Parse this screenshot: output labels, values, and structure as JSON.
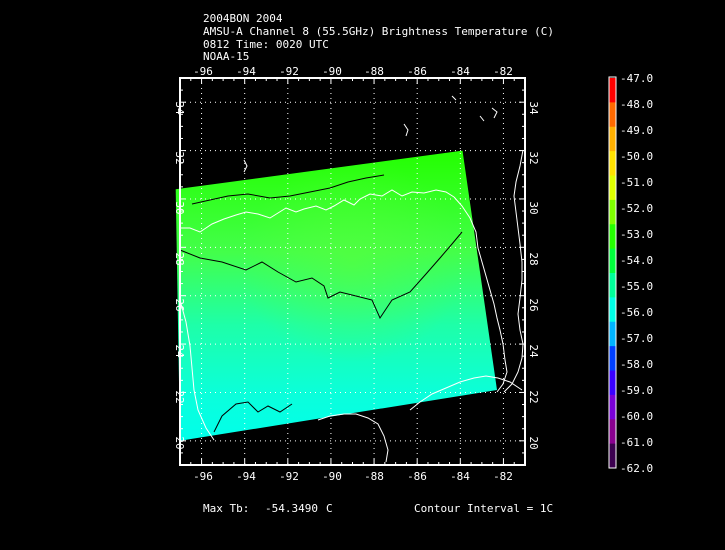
{
  "header": {
    "line1": "2004BON 2004",
    "line2": "AMSU-A Channel 8 (55.5GHz) Brightness Temperature (C)",
    "line3": "0812 Time: 0020 UTC",
    "line4": "NOAA-15"
  },
  "map": {
    "lon_range": [
      -97,
      -81
    ],
    "lat_range": [
      19,
      35
    ],
    "lon_ticks": [
      "-96",
      "-94",
      "-92",
      "-90",
      "-88",
      "-86",
      "-84",
      "-82"
    ],
    "lat_ticks": [
      "20",
      "22",
      "24",
      "26",
      "28",
      "30",
      "32",
      "34"
    ],
    "grid_color": "#ffffff",
    "coast_color": "#ffffff",
    "contour_color": "#000000",
    "swath_corners_deg": [
      [
        -97.2,
        30.4
      ],
      [
        -83.9,
        32.0
      ],
      [
        -82.3,
        22.1
      ],
      [
        -97.0,
        20.0
      ]
    ]
  },
  "colorbar": {
    "labels": [
      "-47.0",
      "-48.0",
      "-49.0",
      "-50.0",
      "-51.0",
      "-52.0",
      "-53.0",
      "-54.0",
      "-55.0",
      "-56.0",
      "-57.0",
      "-58.0",
      "-59.0",
      "-60.0",
      "-61.0",
      "-62.0"
    ],
    "colors": [
      "#ff0000",
      "#ff6a00",
      "#ffb000",
      "#ffe100",
      "#dfff00",
      "#7fff00",
      "#25ff00",
      "#00ff3c",
      "#00ff9a",
      "#00ffe6",
      "#00b4ff",
      "#0040ff",
      "#3a00ff",
      "#7a00d8",
      "#8a0090",
      "#3c0050"
    ]
  },
  "footer": {
    "max_label": "Max Tb:",
    "max_value": "-54.3490",
    "max_unit": "C",
    "contour_text": "Contour Interval = 1C"
  }
}
